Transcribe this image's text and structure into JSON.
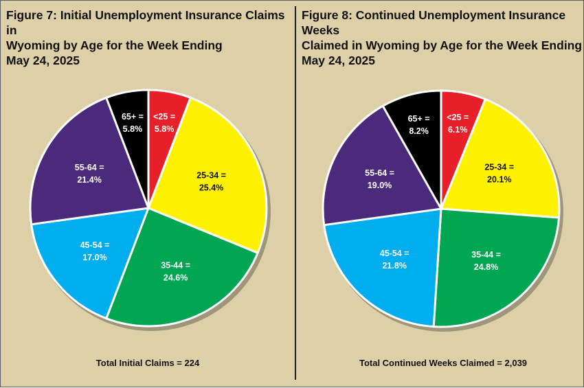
{
  "chart_data": [
    {
      "type": "pie",
      "title": "Figure 7: Initial Unemployment Insurance Claims in Wyoming by Age for the Week Ending May 24, 2025",
      "title_lines": [
        "Figure 7: Initial Unemployment Insurance Claims in",
        "Wyoming by Age for the Week Ending",
        "May 24, 2025"
      ],
      "total_label": "Total Initial Claims = 224",
      "slices": [
        {
          "name": "<25",
          "value": 5.8,
          "label": "5.8%",
          "color": "#e8202a",
          "text_color": "#ffffff"
        },
        {
          "name": "25-34",
          "value": 25.4,
          "label": "25.4%",
          "color": "#fff200",
          "text_color": "#111111"
        },
        {
          "name": "35-44",
          "value": 24.6,
          "label": "24.6%",
          "color": "#00a651",
          "text_color": "#ffffff"
        },
        {
          "name": "45-54",
          "value": 17.0,
          "label": "17.0%",
          "color": "#00aeef",
          "text_color": "#ffffff"
        },
        {
          "name": "55-64",
          "value": 21.4,
          "label": "21.4%",
          "color": "#4b2a7b",
          "text_color": "#ffffff"
        },
        {
          "name": "65+",
          "value": 5.8,
          "label": "5.8%",
          "color": "#000000",
          "text_color": "#ffffff"
        }
      ]
    },
    {
      "type": "pie",
      "title": "Figure 8: Continued Unemployment Insurance Weeks Claimed in Wyoming by Age for the Week Ending May 24, 2025",
      "title_lines": [
        "Figure 8: Continued Unemployment Insurance Weeks",
        "Claimed in Wyoming by Age for the Week Ending",
        "May 24, 2025"
      ],
      "total_label": "Total Continued Weeks Claimed = 2,039",
      "slices": [
        {
          "name": "<25",
          "value": 6.1,
          "label": "6.1%",
          "color": "#e8202a",
          "text_color": "#ffffff"
        },
        {
          "name": "25-34",
          "value": 20.1,
          "label": "20.1%",
          "color": "#fff200",
          "text_color": "#111111"
        },
        {
          "name": "35-44",
          "value": 24.8,
          "label": "24.8%",
          "color": "#00a651",
          "text_color": "#ffffff"
        },
        {
          "name": "45-54",
          "value": 21.8,
          "label": "21.8%",
          "color": "#00aeef",
          "text_color": "#ffffff"
        },
        {
          "name": "55-64",
          "value": 19.0,
          "label": "19.0%",
          "color": "#4b2a7b",
          "text_color": "#ffffff"
        },
        {
          "name": "65+",
          "value": 8.2,
          "label": "8.2%",
          "color": "#000000",
          "text_color": "#ffffff"
        }
      ]
    }
  ],
  "colors": {
    "background": "#ddd0a9",
    "slice_border": "#ffffff",
    "divider": "#222222"
  }
}
